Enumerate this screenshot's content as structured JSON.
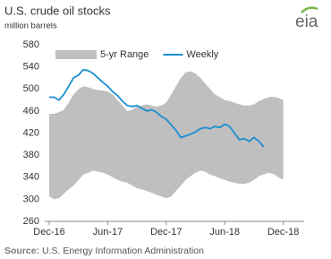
{
  "logo": "eia",
  "chart_data": {
    "type": "line",
    "title": "U.S. crude oil stocks",
    "subtitle": "million barrels",
    "source_label": "Source:",
    "source": "U.S. Energy Information Administration",
    "categories": [
      "Dec-16",
      null,
      null,
      null,
      null,
      null,
      null,
      null,
      null,
      null,
      null,
      null,
      "Jun-17",
      null,
      null,
      null,
      null,
      null,
      null,
      null,
      null,
      null,
      null,
      null,
      "Dec-17",
      null,
      null,
      null,
      null,
      null,
      null,
      null,
      null,
      null,
      null,
      null,
      "Jun-18",
      null,
      null,
      null,
      null,
      null,
      null,
      null,
      null,
      null,
      null,
      null,
      "Dec-18"
    ],
    "ylim": [
      260,
      580
    ],
    "yticks": [
      260,
      300,
      340,
      380,
      420,
      460,
      500,
      540,
      580
    ],
    "grid": false,
    "legend": "top",
    "series": [
      {
        "name": "5-yr Range",
        "color": "#bfbfbf",
        "high": [
          455,
          455,
          458,
          462,
          475,
          490,
          500,
          505,
          503,
          500,
          498,
          497,
          495,
          490,
          480,
          470,
          460,
          462,
          468,
          470,
          472,
          470,
          468,
          470,
          475,
          490,
          505,
          520,
          530,
          532,
          528,
          520,
          510,
          500,
          490,
          485,
          480,
          478,
          475,
          472,
          470,
          470,
          472,
          478,
          482,
          485,
          486,
          484,
          480
        ],
        "low": [
          305,
          300,
          302,
          310,
          318,
          325,
          335,
          345,
          348,
          352,
          350,
          348,
          345,
          340,
          335,
          332,
          330,
          325,
          320,
          318,
          315,
          312,
          308,
          305,
          302,
          305,
          315,
          325,
          335,
          342,
          348,
          352,
          350,
          345,
          342,
          338,
          335,
          332,
          330,
          328,
          328,
          330,
          335,
          342,
          345,
          348,
          346,
          340,
          335
        ]
      },
      {
        "name": "Weekly",
        "color": "#1a8fcf",
        "values": [
          485,
          485,
          480,
          490,
          505,
          520,
          525,
          535,
          533,
          528,
          520,
          512,
          505,
          495,
          488,
          478,
          470,
          468,
          470,
          465,
          460,
          462,
          458,
          450,
          445,
          435,
          425,
          412,
          415,
          418,
          422,
          428,
          430,
          428,
          432,
          430,
          436,
          432,
          420,
          408,
          410,
          405,
          412,
          405,
          395,
          null,
          null,
          null,
          null
        ]
      }
    ]
  }
}
